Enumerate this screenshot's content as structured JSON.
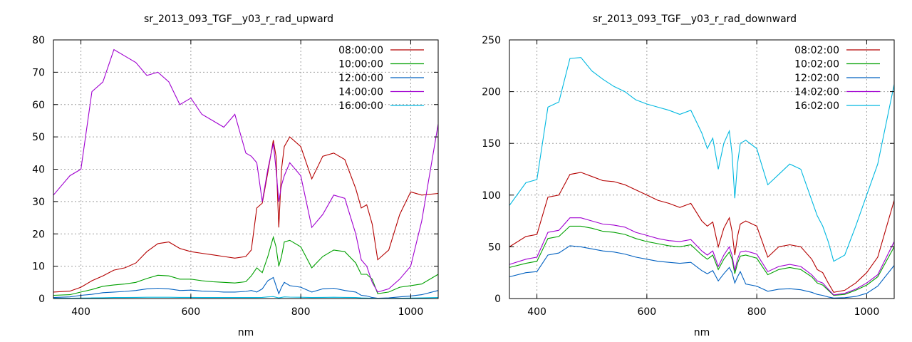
{
  "chart_data": [
    {
      "type": "line",
      "title": "sr_2013_093_TGF__y03_r_rad_upward",
      "xlabel": "nm",
      "ylabel": "",
      "xlim": [
        350,
        1050
      ],
      "ylim": [
        0,
        80
      ],
      "xticks": [
        400,
        600,
        800,
        1000
      ],
      "yticks": [
        0,
        10,
        20,
        30,
        40,
        50,
        60,
        70,
        80
      ],
      "grid": true,
      "legend_position": "top-right",
      "x": [
        350,
        380,
        400,
        420,
        440,
        460,
        480,
        500,
        520,
        540,
        560,
        580,
        600,
        620,
        640,
        660,
        680,
        700,
        710,
        720,
        730,
        740,
        750,
        755,
        760,
        765,
        770,
        780,
        800,
        820,
        840,
        860,
        880,
        900,
        910,
        920,
        930,
        940,
        960,
        980,
        1000,
        1020,
        1050
      ],
      "series": [
        {
          "name": "08:00:00",
          "color": "#b40000",
          "values": [
            2.0,
            2.3,
            3.5,
            5.5,
            7.0,
            8.8,
            9.5,
            11.0,
            14.5,
            17.0,
            17.5,
            15.5,
            14.5,
            14.0,
            13.5,
            13.0,
            12.5,
            13.0,
            15.0,
            28.0,
            29.5,
            39.0,
            49.0,
            44.0,
            22.0,
            40.0,
            47.0,
            50.0,
            47.0,
            37.0,
            44.0,
            45.0,
            43.0,
            34.0,
            28.0,
            29.0,
            23.0,
            12.0,
            15.0,
            26.0,
            33.0,
            32.0,
            32.5
          ]
        },
        {
          "name": "10:00:00",
          "color": "#00a000",
          "values": [
            1.0,
            1.2,
            2.0,
            2.8,
            3.8,
            4.2,
            4.5,
            5.0,
            6.2,
            7.2,
            7.0,
            6.0,
            6.0,
            5.5,
            5.2,
            5.0,
            4.8,
            5.2,
            7.0,
            9.5,
            8.0,
            13.0,
            19.0,
            16.0,
            10.0,
            13.0,
            17.5,
            18.0,
            16.0,
            9.5,
            13.0,
            15.0,
            14.5,
            11.0,
            7.5,
            7.5,
            6.0,
            1.5,
            2.0,
            3.5,
            4.0,
            4.5,
            7.5
          ]
        },
        {
          "name": "12:00:00",
          "color": "#0060c0",
          "values": [
            0.3,
            0.5,
            1.0,
            1.3,
            1.8,
            2.0,
            2.2,
            2.5,
            3.0,
            3.2,
            3.0,
            2.5,
            2.6,
            2.3,
            2.2,
            2.0,
            2.0,
            2.2,
            2.5,
            2.0,
            3.0,
            5.5,
            6.5,
            4.0,
            1.5,
            3.5,
            5.0,
            4.0,
            3.5,
            2.0,
            3.0,
            3.2,
            2.5,
            2.0,
            1.0,
            0.8,
            0.3,
            0.1,
            0.2,
            0.5,
            0.8,
            1.2,
            2.5
          ]
        },
        {
          "name": "14:00:00",
          "color": "#a000d0",
          "values": [
            32.0,
            38.0,
            40.0,
            64.0,
            67.0,
            77.0,
            75.0,
            73.0,
            69.0,
            70.0,
            67.0,
            60.0,
            62.0,
            57.0,
            55.0,
            53.0,
            57.0,
            45.0,
            44.0,
            42.0,
            30.0,
            40.0,
            48.0,
            40.0,
            30.0,
            35.0,
            38.0,
            42.0,
            38.0,
            22.0,
            26.0,
            32.0,
            31.0,
            20.0,
            12.0,
            10.0,
            5.0,
            2.0,
            3.0,
            6.0,
            10.0,
            24.0,
            54.0
          ]
        },
        {
          "name": "16:00:00",
          "color": "#00b8e0",
          "values": [
            0.1,
            0.1,
            0.15,
            0.2,
            0.25,
            0.3,
            0.3,
            0.35,
            0.4,
            0.4,
            0.4,
            0.35,
            0.35,
            0.3,
            0.3,
            0.3,
            0.3,
            0.3,
            0.3,
            0.3,
            0.35,
            0.5,
            0.6,
            0.4,
            0.2,
            0.35,
            0.5,
            0.45,
            0.4,
            0.3,
            0.35,
            0.4,
            0.35,
            0.3,
            0.2,
            0.15,
            0.1,
            0.05,
            0.05,
            0.1,
            0.15,
            0.2,
            0.3
          ]
        }
      ]
    },
    {
      "type": "line",
      "title": "sr_2013_093_TGF__y03_r_rad_downward",
      "xlabel": "nm",
      "ylabel": "",
      "xlim": [
        350,
        1050
      ],
      "ylim": [
        0,
        250
      ],
      "xticks": [
        400,
        600,
        800,
        1000
      ],
      "yticks": [
        0,
        50,
        100,
        150,
        200,
        250
      ],
      "grid": true,
      "legend_position": "top-right",
      "x": [
        350,
        380,
        400,
        420,
        440,
        460,
        480,
        500,
        520,
        540,
        560,
        580,
        600,
        620,
        640,
        660,
        680,
        700,
        710,
        720,
        730,
        740,
        750,
        755,
        760,
        765,
        770,
        780,
        800,
        820,
        840,
        860,
        880,
        900,
        910,
        920,
        930,
        940,
        960,
        980,
        1000,
        1020,
        1050
      ],
      "series": [
        {
          "name": "08:02:00",
          "color": "#b40000",
          "values": [
            50.0,
            60.0,
            62.0,
            98.0,
            100.0,
            120.0,
            122.0,
            118.0,
            114.0,
            113.0,
            110.0,
            105.0,
            100.0,
            95.0,
            92.0,
            88.0,
            92.0,
            75.0,
            70.0,
            74.0,
            50.0,
            68.0,
            78.0,
            65.0,
            42.0,
            60.0,
            72.0,
            75.0,
            70.0,
            40.0,
            50.0,
            52.0,
            50.0,
            38.0,
            28.0,
            25.0,
            15.0,
            6.0,
            8.0,
            15.0,
            25.0,
            40.0,
            95.0
          ]
        },
        {
          "name": "10:02:00",
          "color": "#00a000",
          "values": [
            30.0,
            34.0,
            36.0,
            58.0,
            60.0,
            70.0,
            70.0,
            68.0,
            65.0,
            64.0,
            62.0,
            58.0,
            55.0,
            53.0,
            51.0,
            50.0,
            52.0,
            42.0,
            38.0,
            42.0,
            28.0,
            38.0,
            45.0,
            38.0,
            24.0,
            34.0,
            41.0,
            42.0,
            39.0,
            23.0,
            28.0,
            30.0,
            28.0,
            21.0,
            15.0,
            13.0,
            8.0,
            3.0,
            4.0,
            8.0,
            13.0,
            21.0,
            50.0
          ]
        },
        {
          "name": "12:02:00",
          "color": "#0060c0",
          "values": [
            21.0,
            25.0,
            26.0,
            42.0,
            44.0,
            51.0,
            50.0,
            48.0,
            46.0,
            45.0,
            43.0,
            40.0,
            38.0,
            36.0,
            35.0,
            34.0,
            35.0,
            27.0,
            24.0,
            27.0,
            17.0,
            24.0,
            30.0,
            25.0,
            15.0,
            21.0,
            26.0,
            14.0,
            12.0,
            7.0,
            9.0,
            9.5,
            8.5,
            6.0,
            4.0,
            3.0,
            1.5,
            0.5,
            0.8,
            2.0,
            5.0,
            12.0,
            32.0
          ]
        },
        {
          "name": "14:02:00",
          "color": "#a000d0",
          "values": [
            33.0,
            38.0,
            40.0,
            64.0,
            66.0,
            78.0,
            78.0,
            75.0,
            72.0,
            71.0,
            69.0,
            64.0,
            61.0,
            58.0,
            56.0,
            55.0,
            57.0,
            46.0,
            42.0,
            46.0,
            31.0,
            42.0,
            50.0,
            42.0,
            27.0,
            38.0,
            45.0,
            46.0,
            43.0,
            26.0,
            31.0,
            33.0,
            31.0,
            23.0,
            17.0,
            15.0,
            9.0,
            3.5,
            5.0,
            9.0,
            15.0,
            23.0,
            55.0
          ]
        },
        {
          "name": "16:02:00",
          "color": "#00b8e0",
          "values": [
            90.0,
            112.0,
            115.0,
            185.0,
            190.0,
            232.0,
            233.0,
            220.0,
            212.0,
            205.0,
            200.0,
            192.0,
            188.0,
            185.0,
            182.0,
            178.0,
            182.0,
            160.0,
            145.0,
            155.0,
            125.0,
            150.0,
            162.0,
            140.0,
            97.0,
            130.0,
            150.0,
            153.0,
            145.0,
            110.0,
            120.0,
            130.0,
            125.0,
            95.0,
            80.0,
            70.0,
            55.0,
            36.0,
            42.0,
            70.0,
            100.0,
            130.0,
            207.0
          ]
        }
      ]
    }
  ]
}
